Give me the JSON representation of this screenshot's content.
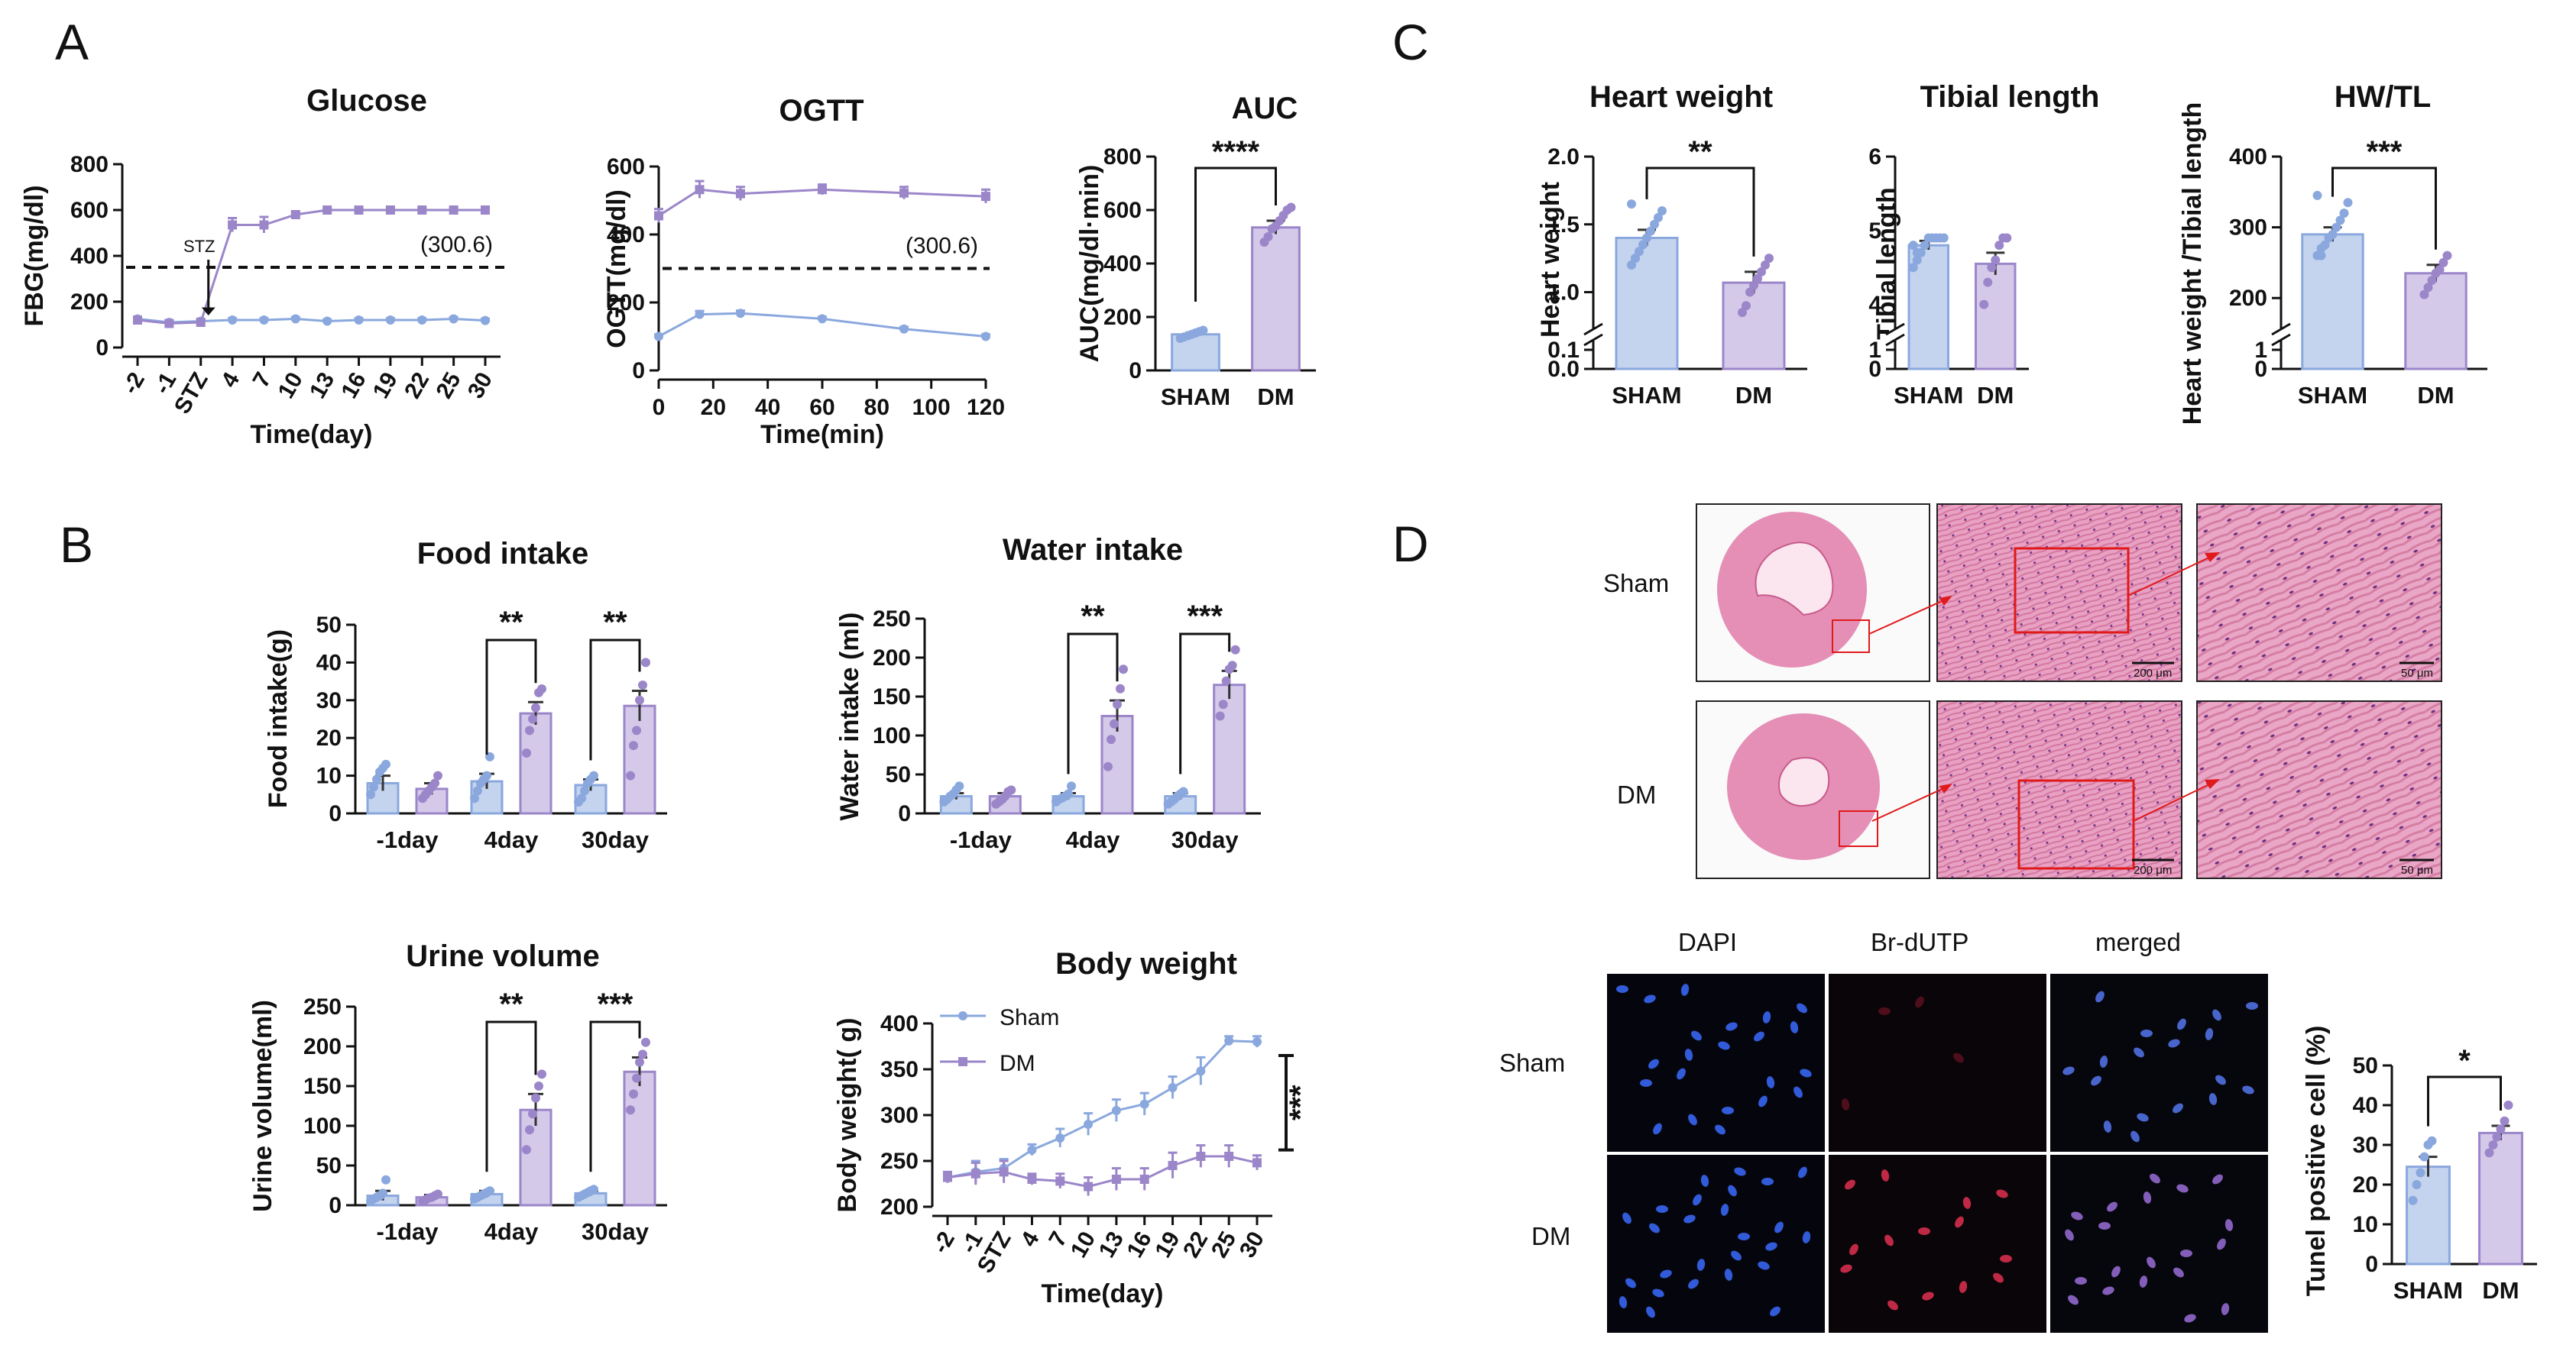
{
  "panel_labels": {
    "A": "A",
    "B": "B",
    "C": "C",
    "D": "D"
  },
  "colors": {
    "sham": "#8aa8de",
    "dm": "#9b86c9",
    "sham_fill": "#c4d3ee",
    "dm_fill": "#d4c9e9",
    "axis": "#111111",
    "he_pink": "#e58fb6",
    "scale_red": "#e01a1a"
  },
  "chart_data": [
    {
      "id": "glucose",
      "type": "line",
      "title": "Glucose",
      "xlabel": "Time(day)",
      "ylabel": "FBG(mg/dl)",
      "ylim": [
        0,
        800
      ],
      "yticks": [
        "0",
        "200",
        "400",
        "600",
        "800"
      ],
      "categories": [
        "-2",
        "-1",
        "STZ",
        "4",
        "7",
        "10",
        "13",
        "16",
        "19",
        "22",
        "25",
        "30"
      ],
      "series": [
        {
          "name": "Sham",
          "values": [
            125,
            110,
            115,
            120,
            120,
            125,
            115,
            120,
            120,
            120,
            125,
            118
          ],
          "err": [
            8,
            8,
            8,
            8,
            8,
            8,
            8,
            8,
            8,
            8,
            8,
            8
          ]
        },
        {
          "name": "DM",
          "values": [
            120,
            105,
            110,
            535,
            535,
            580,
            600,
            600,
            600,
            600,
            600,
            600
          ],
          "err": [
            8,
            8,
            8,
            30,
            35,
            10,
            6,
            6,
            6,
            6,
            6,
            6
          ]
        }
      ],
      "threshold": 350,
      "threshold_label": "(300.6)",
      "annotation": "STZ"
    },
    {
      "id": "ogtt",
      "type": "line",
      "title": "OGTT",
      "xlabel": "Time(min)",
      "ylabel": "OGTT(mg/dl)",
      "ylim": [
        0,
        600
      ],
      "yticks": [
        "0",
        "200",
        "400",
        "600"
      ],
      "xticks": [
        "0",
        "20",
        "40",
        "60",
        "80",
        "100",
        "120"
      ],
      "x": [
        0,
        15,
        30,
        60,
        90,
        120
      ],
      "series": [
        {
          "name": "Sham",
          "values": [
            100,
            165,
            168,
            152,
            122,
            100
          ],
          "err": [
            6,
            10,
            8,
            6,
            6,
            6
          ]
        },
        {
          "name": "DM",
          "values": [
            455,
            532,
            520,
            532,
            522,
            512
          ],
          "err": [
            20,
            25,
            20,
            15,
            18,
            20
          ]
        }
      ],
      "threshold": 300,
      "threshold_label": "(300.6)"
    },
    {
      "id": "auc",
      "type": "bar",
      "title": "AUC",
      "ylabel": "AUC(mg/dl·min)",
      "ylim": [
        0,
        800
      ],
      "yticks": [
        "0",
        "200",
        "400",
        "600",
        "800"
      ],
      "categories": [
        "SHAM",
        "DM"
      ],
      "values": [
        135,
        535
      ],
      "err": [
        8,
        25
      ],
      "significance": "****",
      "points": [
        [
          120,
          125,
          130,
          135,
          140,
          145,
          150
        ],
        [
          480,
          500,
          530,
          540,
          560,
          580,
          600,
          610
        ]
      ]
    },
    {
      "id": "food",
      "type": "bar",
      "title": "Food intake",
      "ylabel": "Food intake(g)",
      "ylim": [
        0,
        50
      ],
      "yticks": [
        "0",
        "10",
        "20",
        "30",
        "40",
        "50"
      ],
      "categories": [
        "-1day",
        "4day",
        "30day"
      ],
      "series": [
        {
          "name": "Sham",
          "values": [
            8,
            8.5,
            7.5
          ],
          "err": [
            2,
            2,
            1.5
          ]
        },
        {
          "name": "DM",
          "values": [
            6.5,
            26.5,
            28.5
          ],
          "err": [
            1.5,
            3,
            4
          ]
        }
      ],
      "significance": [
        "",
        "**",
        "**"
      ],
      "points": [
        [
          [
            5,
            7,
            9,
            11,
            12,
            13
          ],
          [
            4,
            5,
            6,
            7,
            8,
            10
          ]
        ],
        [
          [
            4,
            6,
            8,
            9,
            10,
            15
          ],
          [
            16,
            22,
            25,
            28,
            32,
            33
          ]
        ],
        [
          [
            3,
            4,
            6,
            8,
            9,
            10
          ],
          [
            10,
            18,
            22,
            30,
            34,
            40
          ]
        ]
      ]
    },
    {
      "id": "water",
      "type": "bar",
      "title": "Water intake",
      "ylabel": "Water intake (ml)",
      "ylim": [
        0,
        250
      ],
      "yticks": [
        "0",
        "50",
        "100",
        "150",
        "200",
        "250"
      ],
      "categories": [
        "-1day",
        "4day",
        "30day"
      ],
      "series": [
        {
          "name": "Sham",
          "values": [
            22,
            22,
            22
          ],
          "err": [
            4,
            4,
            4
          ]
        },
        {
          "name": "DM",
          "values": [
            22,
            125,
            165
          ],
          "err": [
            4,
            20,
            18
          ]
        }
      ],
      "significance": [
        "",
        "**",
        "***"
      ],
      "points": [
        [
          [
            15,
            18,
            22,
            25,
            30,
            35
          ],
          [
            12,
            15,
            18,
            22,
            28,
            30
          ]
        ],
        [
          [
            15,
            18,
            20,
            22,
            25,
            35
          ],
          [
            60,
            95,
            115,
            140,
            160,
            185
          ]
        ],
        [
          [
            12,
            15,
            18,
            22,
            25,
            28
          ],
          [
            125,
            140,
            170,
            185,
            190,
            210
          ]
        ]
      ]
    },
    {
      "id": "urine",
      "type": "bar",
      "title": "Urine volume",
      "ylabel": "Urine volume(ml)",
      "ylim": [
        0,
        250
      ],
      "yticks": [
        "0",
        "50",
        "100",
        "150",
        "200",
        "250"
      ],
      "categories": [
        "-1day",
        "4day",
        "30day"
      ],
      "series": [
        {
          "name": "Sham",
          "values": [
            12,
            14,
            15
          ],
          "err": [
            6,
            4,
            3
          ]
        },
        {
          "name": "DM",
          "values": [
            10,
            120,
            168
          ],
          "err": [
            3,
            20,
            18
          ]
        }
      ],
      "significance": [
        "",
        "**",
        "***"
      ],
      "points": [
        [
          [
            5,
            8,
            10,
            12,
            15,
            32
          ],
          [
            5,
            7,
            9,
            10,
            12,
            14
          ]
        ],
        [
          [
            8,
            10,
            12,
            14,
            16,
            18
          ],
          [
            70,
            95,
            115,
            135,
            150,
            165
          ]
        ],
        [
          [
            10,
            12,
            14,
            16,
            18,
            20
          ],
          [
            120,
            140,
            160,
            180,
            190,
            205
          ]
        ]
      ]
    },
    {
      "id": "bodyweight",
      "type": "line",
      "title": "Body weight",
      "xlabel": "Time(day)",
      "ylabel": "Body weight( g)",
      "ylim": [
        200,
        400
      ],
      "yticks": [
        "200",
        "250",
        "300",
        "350",
        "400"
      ],
      "categories": [
        "-2",
        "-1",
        "STZ",
        "4",
        "7",
        "10",
        "13",
        "16",
        "19",
        "22",
        "25",
        "30"
      ],
      "legend": [
        "Sham",
        "DM"
      ],
      "significance": "***",
      "series": [
        {
          "name": "Sham",
          "values": [
            232,
            238,
            242,
            262,
            275,
            290,
            305,
            312,
            330,
            348,
            381,
            380
          ],
          "err": [
            6,
            12,
            10,
            6,
            10,
            12,
            12,
            12,
            12,
            15,
            5,
            6
          ]
        },
        {
          "name": "DM",
          "values": [
            232,
            236,
            238,
            230,
            228,
            222,
            230,
            230,
            245,
            255,
            255,
            248
          ],
          "err": [
            6,
            12,
            12,
            6,
            8,
            10,
            12,
            12,
            14,
            12,
            12,
            8
          ]
        }
      ]
    },
    {
      "id": "heart_weight",
      "type": "bar",
      "title": "Heart weight",
      "ylabel": "Heart weight",
      "ylim": [
        0,
        2.0
      ],
      "yticks": [
        "0.0",
        "0.1",
        "1.0",
        "1.5",
        "2.0"
      ],
      "categories": [
        "SHAM",
        "DM"
      ],
      "values": [
        1.4,
        1.07
      ],
      "err": [
        0.06,
        0.08
      ],
      "significance": "**",
      "points": [
        [
          1.2,
          1.25,
          1.3,
          1.35,
          1.4,
          1.45,
          1.5,
          1.55,
          1.6,
          1.65,
          1.25
        ],
        [
          0.85,
          0.9,
          1.0,
          1.05,
          1.1,
          1.15,
          1.2,
          1.25
        ]
      ]
    },
    {
      "id": "tibial_length",
      "type": "bar",
      "title": "Tibial length",
      "ylabel": "Tibial length",
      "ylim": [
        0,
        6
      ],
      "yticks": [
        "0",
        "1",
        "4",
        "5",
        "6"
      ],
      "categories": [
        "SHAM",
        "DM"
      ],
      "values": [
        4.8,
        4.55
      ],
      "err": [
        0.06,
        0.15
      ],
      "significance": "",
      "points": [
        [
          4.5,
          4.6,
          4.7,
          4.8,
          4.9,
          4.9,
          4.9,
          4.9,
          4.9,
          4.8,
          4.7
        ],
        [
          4.0,
          4.3,
          4.5,
          4.6,
          4.8,
          4.9,
          4.9
        ]
      ]
    },
    {
      "id": "hw_tl",
      "type": "bar",
      "title": "HW/TL",
      "ylabel": "Heart weight /Tibial length",
      "ylim": [
        0,
        400
      ],
      "yticks": [
        "0",
        "1",
        "200",
        "300",
        "400"
      ],
      "categories": [
        "SHAM",
        "DM"
      ],
      "values": [
        290,
        235
      ],
      "err": [
        10,
        12
      ],
      "significance": "***",
      "points": [
        [
          260,
          270,
          275,
          285,
          290,
          300,
          310,
          320,
          335,
          345,
          260
        ],
        [
          205,
          215,
          225,
          235,
          240,
          250,
          260
        ]
      ]
    },
    {
      "id": "tunel",
      "type": "bar",
      "title": "",
      "ylabel": "Tunel positive cell (%)",
      "ylim": [
        0,
        50
      ],
      "yticks": [
        "0",
        "10",
        "20",
        "30",
        "40",
        "50"
      ],
      "categories": [
        "SHAM",
        "DM"
      ],
      "values": [
        24.5,
        33
      ],
      "err": [
        2.5,
        1.8
      ],
      "significance": "*",
      "points": [
        [
          16,
          20,
          23,
          27,
          30,
          31
        ],
        [
          28,
          30,
          32,
          34,
          36,
          40
        ]
      ]
    }
  ],
  "histology": {
    "rows": [
      "Sham",
      "DM"
    ],
    "scale_bars": [
      "200 μm",
      "50 μm"
    ]
  },
  "fluorescence": {
    "columns": [
      "DAPI",
      "Br-dUTP",
      "merged"
    ],
    "rows": [
      "Sham",
      "DM"
    ]
  }
}
